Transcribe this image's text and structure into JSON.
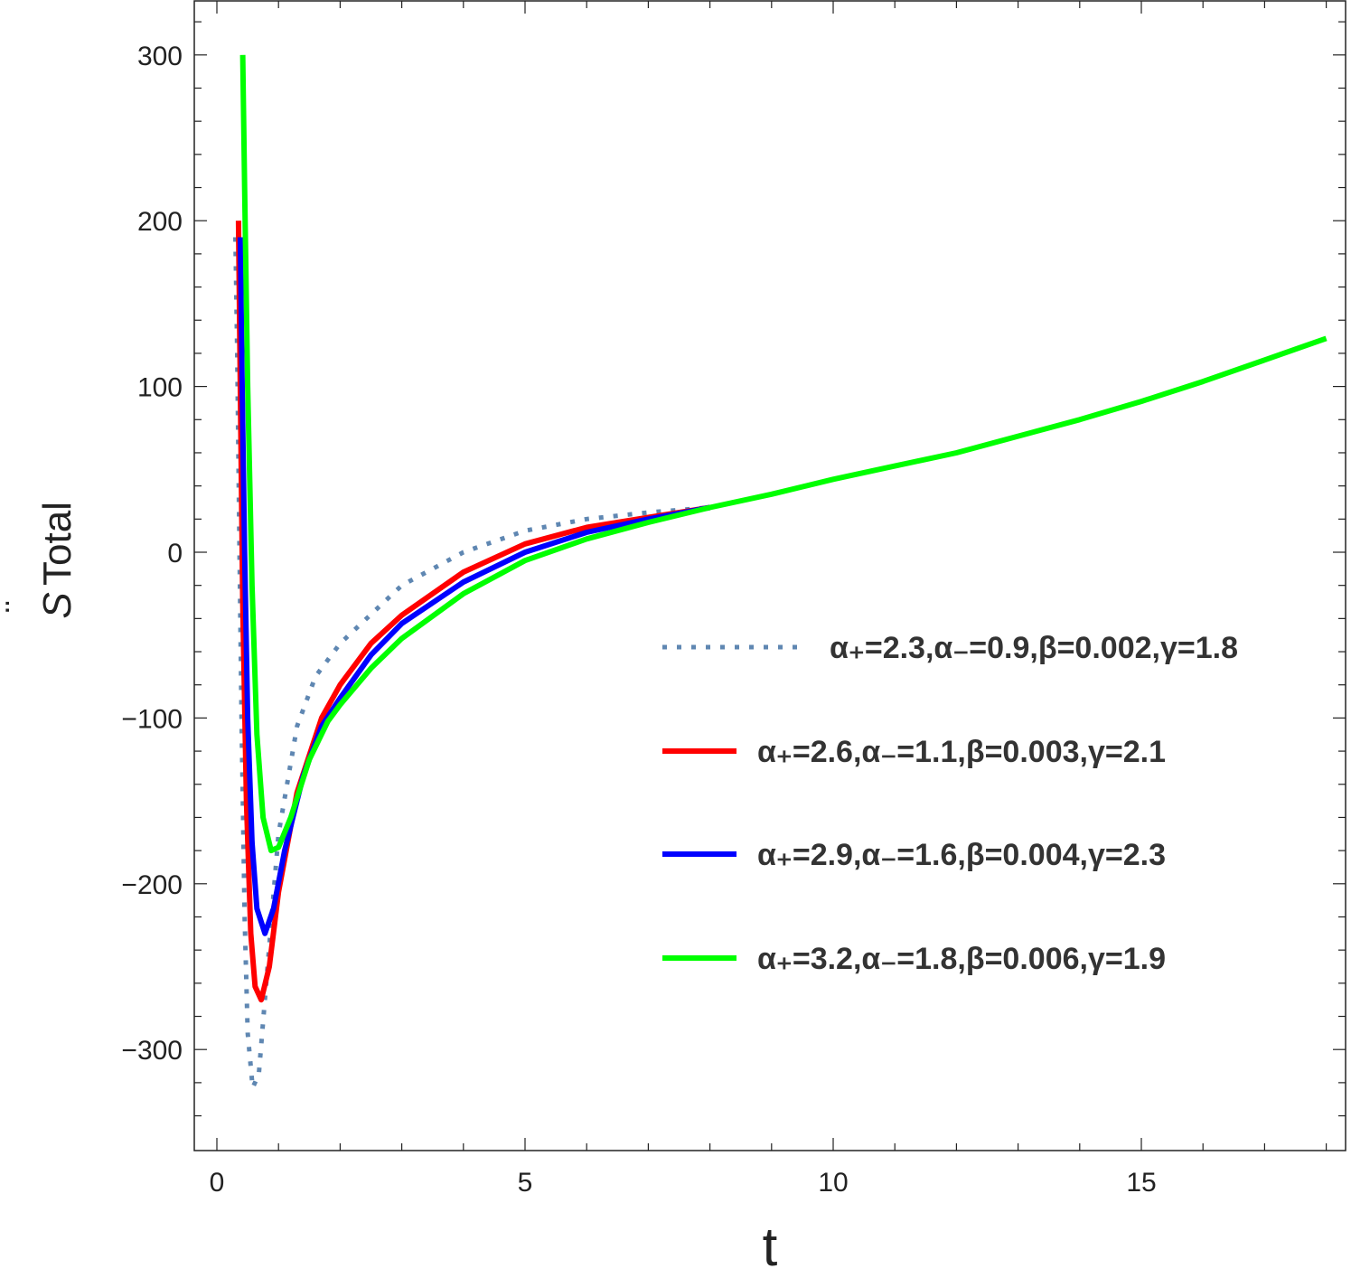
{
  "chart_data": {
    "type": "line",
    "xlabel": "t",
    "ylabel": "Total",
    "ylabel_symbol": "S",
    "xlim": [
      0,
      18
    ],
    "ylim": [
      -350,
      330
    ],
    "xticks": [
      0,
      5,
      10,
      15
    ],
    "yticks": [
      -300,
      -200,
      -100,
      0,
      100,
      200,
      300
    ],
    "x_tick_labels": [
      "0",
      "5",
      "10",
      "15"
    ],
    "y_tick_labels": [
      "−300",
      "−200",
      "−100",
      "0",
      "100",
      "200",
      "300"
    ],
    "legend_placement": "right-center",
    "grid": false,
    "series": [
      {
        "label": "α₊=2.3,α₋=0.9,β=0.002,γ=1.8",
        "style": "dotted",
        "color": "#5f87b2",
        "points": [
          [
            0.3,
            190
          ],
          [
            0.33,
            120
          ],
          [
            0.36,
            20
          ],
          [
            0.4,
            -100
          ],
          [
            0.45,
            -220
          ],
          [
            0.5,
            -290
          ],
          [
            0.58,
            -323
          ],
          [
            0.68,
            -315
          ],
          [
            0.8,
            -260
          ],
          [
            1.0,
            -170
          ],
          [
            1.3,
            -105
          ],
          [
            1.6,
            -75
          ],
          [
            2.0,
            -55
          ],
          [
            3.0,
            -20
          ],
          [
            4.0,
            0
          ],
          [
            5.0,
            13
          ],
          [
            6.0,
            20
          ],
          [
            7.0,
            24
          ],
          [
            8.0,
            27
          ]
        ]
      },
      {
        "label": "α₊=2.6,α₋=1.1,β=0.003,γ=2.1",
        "style": "solid",
        "color": "#ff0000",
        "points": [
          [
            0.35,
            200
          ],
          [
            0.38,
            100
          ],
          [
            0.42,
            -30
          ],
          [
            0.48,
            -150
          ],
          [
            0.55,
            -230
          ],
          [
            0.62,
            -262
          ],
          [
            0.72,
            -270
          ],
          [
            0.85,
            -250
          ],
          [
            1.0,
            -205
          ],
          [
            1.3,
            -145
          ],
          [
            1.7,
            -100
          ],
          [
            2.0,
            -80
          ],
          [
            2.5,
            -55
          ],
          [
            3.0,
            -38
          ],
          [
            4.0,
            -12
          ],
          [
            5.0,
            5
          ],
          [
            6.0,
            15
          ],
          [
            7.0,
            21
          ],
          [
            8.0,
            27
          ]
        ]
      },
      {
        "label": "α₊=2.9,α₋=1.6,β=0.004,γ=2.3",
        "style": "solid",
        "color": "#0000ff",
        "points": [
          [
            0.38,
            190
          ],
          [
            0.41,
            100
          ],
          [
            0.45,
            0
          ],
          [
            0.5,
            -100
          ],
          [
            0.57,
            -175
          ],
          [
            0.65,
            -215
          ],
          [
            0.78,
            -230
          ],
          [
            0.92,
            -215
          ],
          [
            1.1,
            -180
          ],
          [
            1.4,
            -135
          ],
          [
            1.7,
            -105
          ],
          [
            2.0,
            -88
          ],
          [
            2.5,
            -62
          ],
          [
            3.0,
            -43
          ],
          [
            4.0,
            -18
          ],
          [
            5.0,
            0
          ],
          [
            6.0,
            12
          ],
          [
            7.0,
            20
          ],
          [
            8.0,
            27
          ]
        ]
      },
      {
        "label": "α₊=3.2,α₋=1.8,β=0.006,γ=1.9",
        "style": "solid",
        "color": "#00ff00",
        "points": [
          [
            0.42,
            300
          ],
          [
            0.45,
            220
          ],
          [
            0.5,
            100
          ],
          [
            0.57,
            -20
          ],
          [
            0.65,
            -110
          ],
          [
            0.75,
            -160
          ],
          [
            0.88,
            -180
          ],
          [
            1.0,
            -178
          ],
          [
            1.2,
            -160
          ],
          [
            1.5,
            -125
          ],
          [
            1.8,
            -102
          ],
          [
            2.0,
            -92
          ],
          [
            2.5,
            -70
          ],
          [
            3.0,
            -52
          ],
          [
            4.0,
            -25
          ],
          [
            5.0,
            -5
          ],
          [
            6.0,
            8
          ],
          [
            7.0,
            18
          ],
          [
            8.0,
            27
          ],
          [
            9.0,
            35
          ],
          [
            10.0,
            44
          ],
          [
            11.0,
            52
          ],
          [
            12.0,
            60
          ],
          [
            13.0,
            70
          ],
          [
            14.0,
            80
          ],
          [
            15.0,
            91
          ],
          [
            16.0,
            103
          ],
          [
            17.0,
            116
          ],
          [
            18.0,
            129
          ]
        ]
      }
    ]
  }
}
